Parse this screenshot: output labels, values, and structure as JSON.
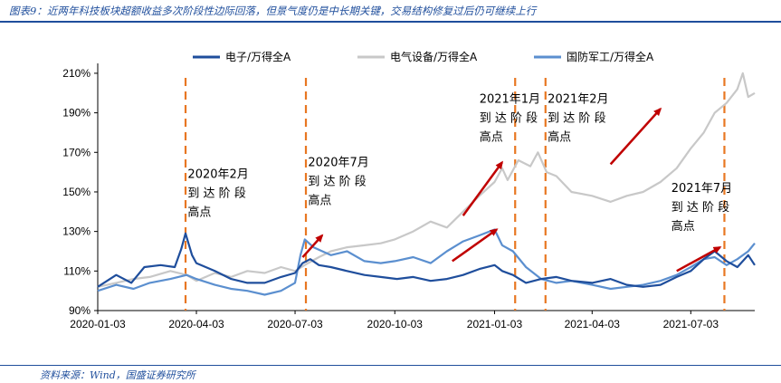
{
  "header": {
    "title": "图表9：近两年科技板块超额收益多次阶段性边际回落，但景气度仍是中长期关键，交易结构修复过后仍可继续上行"
  },
  "footer": {
    "source": "资料来源：Wind，国盛证券研究所"
  },
  "colors": {
    "electronics": "#1f4e9c",
    "electrical": "#c8c8c8",
    "defense": "#5b8fcf",
    "marker": "#e87722",
    "arrow": "#c00000",
    "brand": "#1f4e9c"
  },
  "chart_data": {
    "type": "line",
    "x_start": "2020-01-03",
    "x_end": "2021-08-31",
    "ylim": [
      90,
      215
    ],
    "yticks": [
      "90%",
      "110%",
      "130%",
      "150%",
      "170%",
      "190%",
      "210%"
    ],
    "ytick_values": [
      90,
      110,
      130,
      150,
      170,
      190,
      210
    ],
    "xticks": [
      "2020-01-03",
      "2020-04-03",
      "2020-07-03",
      "2020-10-03",
      "2021-01-03",
      "2021-04-03",
      "2021-07-03"
    ],
    "legend": "top",
    "grid": false,
    "series": [
      {
        "name": "电子/万得全A",
        "color": "#1f4e9c",
        "points": [
          [
            "2020-01-03",
            102
          ],
          [
            "2020-01-20",
            108
          ],
          [
            "2020-02-03",
            104
          ],
          [
            "2020-02-15",
            112
          ],
          [
            "2020-03-01",
            113
          ],
          [
            "2020-03-14",
            112
          ],
          [
            "2020-03-20",
            121
          ],
          [
            "2020-03-24",
            129
          ],
          [
            "2020-03-30",
            118
          ],
          [
            "2020-04-03",
            114
          ],
          [
            "2020-04-20",
            110
          ],
          [
            "2020-05-05",
            106
          ],
          [
            "2020-05-20",
            104
          ],
          [
            "2020-06-05",
            104
          ],
          [
            "2020-06-20",
            107
          ],
          [
            "2020-07-03",
            109
          ],
          [
            "2020-07-10",
            114
          ],
          [
            "2020-07-17",
            116
          ],
          [
            "2020-07-25",
            113
          ],
          [
            "2020-08-05",
            112
          ],
          [
            "2020-08-20",
            110
          ],
          [
            "2020-09-05",
            108
          ],
          [
            "2020-09-20",
            107
          ],
          [
            "2020-10-05",
            106
          ],
          [
            "2020-10-20",
            107
          ],
          [
            "2020-11-05",
            105
          ],
          [
            "2020-11-20",
            106
          ],
          [
            "2020-12-05",
            108
          ],
          [
            "2020-12-20",
            111
          ],
          [
            "2021-01-03",
            113
          ],
          [
            "2021-01-10",
            110
          ],
          [
            "2021-01-20",
            108
          ],
          [
            "2021-02-01",
            104
          ],
          [
            "2021-02-15",
            106
          ],
          [
            "2021-03-01",
            107
          ],
          [
            "2021-03-15",
            105
          ],
          [
            "2021-04-03",
            104
          ],
          [
            "2021-04-20",
            106
          ],
          [
            "2021-05-05",
            103
          ],
          [
            "2021-05-20",
            102
          ],
          [
            "2021-06-05",
            103
          ],
          [
            "2021-06-20",
            107
          ],
          [
            "2021-07-03",
            110
          ],
          [
            "2021-07-15",
            116
          ],
          [
            "2021-07-25",
            120
          ],
          [
            "2021-08-05",
            115
          ],
          [
            "2021-08-15",
            112
          ],
          [
            "2021-08-25",
            118
          ],
          [
            "2021-08-31",
            113
          ]
        ]
      },
      {
        "name": "电气设备/万得全A",
        "color": "#c8c8c8",
        "points": [
          [
            "2020-01-03",
            102
          ],
          [
            "2020-01-20",
            104
          ],
          [
            "2020-02-05",
            106
          ],
          [
            "2020-02-20",
            107
          ],
          [
            "2020-03-10",
            110
          ],
          [
            "2020-03-25",
            108
          ],
          [
            "2020-04-03",
            105
          ],
          [
            "2020-04-20",
            109
          ],
          [
            "2020-05-05",
            107
          ],
          [
            "2020-05-20",
            110
          ],
          [
            "2020-06-05",
            109
          ],
          [
            "2020-06-20",
            112
          ],
          [
            "2020-07-03",
            110
          ],
          [
            "2020-07-15",
            114
          ],
          [
            "2020-07-25",
            117
          ],
          [
            "2020-08-05",
            120
          ],
          [
            "2020-08-20",
            122
          ],
          [
            "2020-09-05",
            123
          ],
          [
            "2020-09-20",
            124
          ],
          [
            "2020-10-03",
            126
          ],
          [
            "2020-10-20",
            130
          ],
          [
            "2020-11-05",
            135
          ],
          [
            "2020-11-20",
            132
          ],
          [
            "2020-12-05",
            140
          ],
          [
            "2020-12-20",
            148
          ],
          [
            "2021-01-03",
            155
          ],
          [
            "2021-01-10",
            162
          ],
          [
            "2021-01-15",
            156
          ],
          [
            "2021-01-25",
            166
          ],
          [
            "2021-02-05",
            163
          ],
          [
            "2021-02-12",
            170
          ],
          [
            "2021-02-20",
            160
          ],
          [
            "2021-03-01",
            158
          ],
          [
            "2021-03-15",
            150
          ],
          [
            "2021-04-03",
            148
          ],
          [
            "2021-04-20",
            145
          ],
          [
            "2021-05-05",
            148
          ],
          [
            "2021-05-20",
            150
          ],
          [
            "2021-06-05",
            155
          ],
          [
            "2021-06-20",
            162
          ],
          [
            "2021-07-03",
            172
          ],
          [
            "2021-07-15",
            180
          ],
          [
            "2021-07-25",
            190
          ],
          [
            "2021-08-05",
            195
          ],
          [
            "2021-08-15",
            202
          ],
          [
            "2021-08-20",
            210
          ],
          [
            "2021-08-25",
            198
          ],
          [
            "2021-08-31",
            200
          ]
        ]
      },
      {
        "name": "国防军工/万得全A",
        "color": "#5b8fcf",
        "points": [
          [
            "2020-01-03",
            100
          ],
          [
            "2020-01-20",
            103
          ],
          [
            "2020-02-05",
            101
          ],
          [
            "2020-02-20",
            104
          ],
          [
            "2020-03-10",
            106
          ],
          [
            "2020-03-25",
            108
          ],
          [
            "2020-04-03",
            106
          ],
          [
            "2020-04-20",
            103
          ],
          [
            "2020-05-05",
            101
          ],
          [
            "2020-05-20",
            100
          ],
          [
            "2020-06-05",
            98
          ],
          [
            "2020-06-20",
            100
          ],
          [
            "2020-07-03",
            104
          ],
          [
            "2020-07-08",
            118
          ],
          [
            "2020-07-12",
            126
          ],
          [
            "2020-07-20",
            122
          ],
          [
            "2020-08-05",
            118
          ],
          [
            "2020-08-20",
            120
          ],
          [
            "2020-09-05",
            115
          ],
          [
            "2020-09-20",
            114
          ],
          [
            "2020-10-03",
            115
          ],
          [
            "2020-10-20",
            117
          ],
          [
            "2020-11-05",
            114
          ],
          [
            "2020-11-20",
            120
          ],
          [
            "2020-12-05",
            125
          ],
          [
            "2020-12-20",
            128
          ],
          [
            "2021-01-03",
            131
          ],
          [
            "2021-01-10",
            123
          ],
          [
            "2021-01-20",
            120
          ],
          [
            "2021-02-01",
            112
          ],
          [
            "2021-02-15",
            106
          ],
          [
            "2021-03-01",
            104
          ],
          [
            "2021-03-15",
            105
          ],
          [
            "2021-04-03",
            103
          ],
          [
            "2021-04-20",
            101
          ],
          [
            "2021-05-05",
            102
          ],
          [
            "2021-05-20",
            103
          ],
          [
            "2021-06-05",
            105
          ],
          [
            "2021-06-20",
            108
          ],
          [
            "2021-07-03",
            112
          ],
          [
            "2021-07-15",
            116
          ],
          [
            "2021-07-25",
            117
          ],
          [
            "2021-08-05",
            113
          ],
          [
            "2021-08-15",
            116
          ],
          [
            "2021-08-25",
            120
          ],
          [
            "2021-08-31",
            124
          ]
        ]
      }
    ],
    "markers": [
      "2020-03-24",
      "2020-07-13",
      "2021-01-22",
      "2021-02-19",
      "2021-08-03"
    ],
    "annotations": [
      {
        "lines": [
          "2020年2月",
          "到 达 阶 段",
          "高点"
        ],
        "date": "2020-03-26",
        "y": 157
      },
      {
        "lines": [
          "2020年7月",
          "到 达 阶 段",
          "高点"
        ],
        "date": "2020-07-15",
        "y": 163
      },
      {
        "lines": [
          "2021年1月",
          "到 达 阶 段",
          "高点"
        ],
        "date": "2020-12-20",
        "y": 195
      },
      {
        "lines": [
          "2021年2月",
          "到 达 阶 段",
          "高点"
        ],
        "date": "2021-02-21",
        "y": 195
      },
      {
        "lines": [
          "2021年7月",
          "到 达 阶 段",
          "高点"
        ],
        "date": "2021-06-15",
        "y": 150
      }
    ],
    "arrows": [
      {
        "from": [
          "2020-07-10",
          117
        ],
        "to": [
          "2020-07-28",
          128
        ]
      },
      {
        "from": [
          "2020-12-05",
          138
        ],
        "to": [
          "2021-01-10",
          165
        ]
      },
      {
        "from": [
          "2020-11-25",
          115
        ],
        "to": [
          "2021-01-05",
          131
        ]
      },
      {
        "from": [
          "2021-04-20",
          164
        ],
        "to": [
          "2021-06-05",
          192
        ]
      },
      {
        "from": [
          "2021-06-20",
          110
        ],
        "to": [
          "2021-07-30",
          122
        ]
      }
    ]
  }
}
